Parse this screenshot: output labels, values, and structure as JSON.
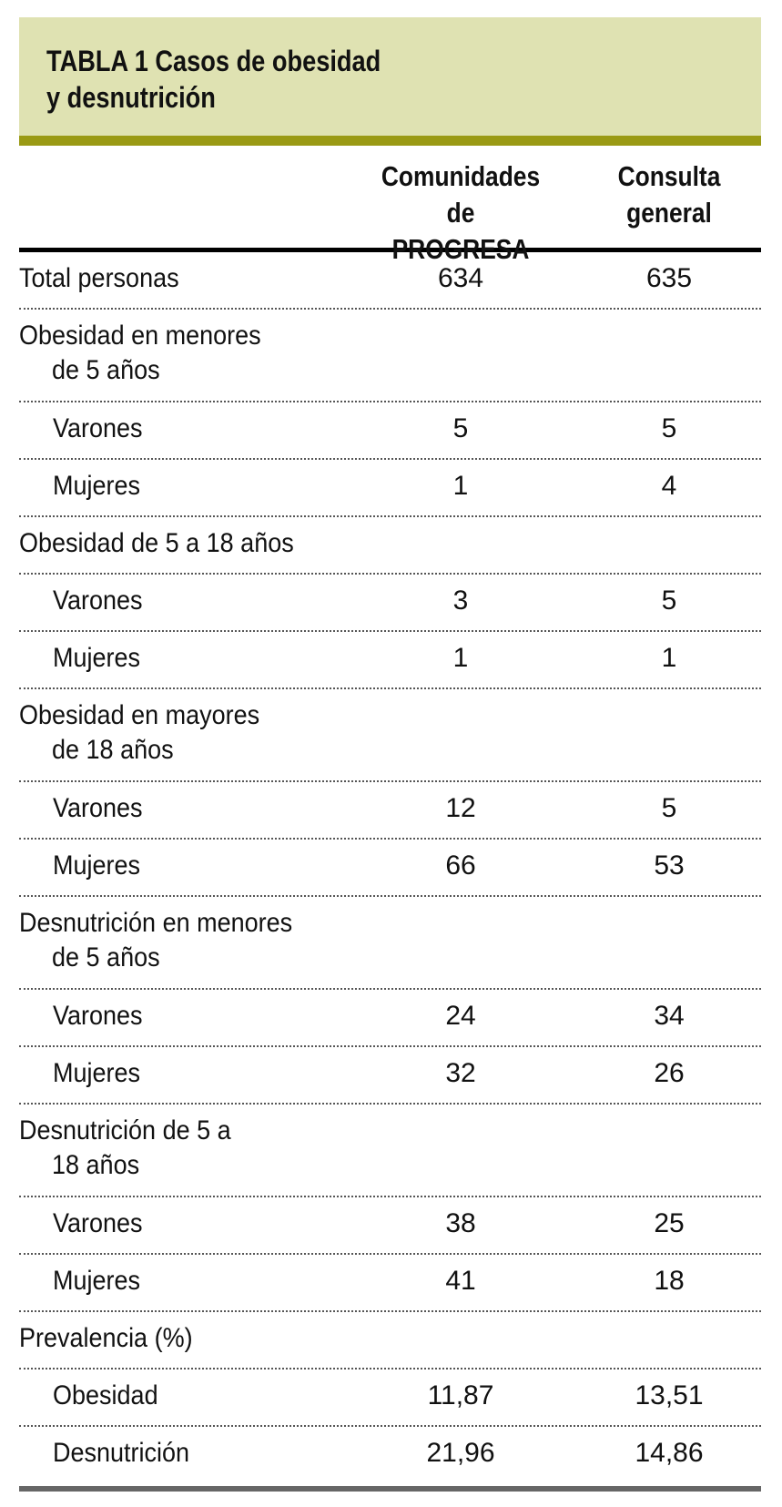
{
  "header": {
    "title_lines": [
      "TABLA 1 Casos de obesidad",
      "y desnutrición"
    ]
  },
  "table": {
    "columns": [
      [
        "Comunidades",
        "de PROGRESA"
      ],
      [
        "Consulta",
        "general"
      ]
    ],
    "sections": [
      {
        "label_lines": [
          "Total personas"
        ],
        "values": [
          634,
          635
        ],
        "rows": []
      },
      {
        "label_lines": [
          "Obesidad en menores",
          "de 5 años"
        ],
        "rows": [
          {
            "label": "Varones",
            "values": [
              5,
              5
            ]
          },
          {
            "label": "Mujeres",
            "values": [
              1,
              4
            ]
          }
        ]
      },
      {
        "label_lines": [
          "Obesidad de 5 a 18 años"
        ],
        "rows": [
          {
            "label": "Varones",
            "values": [
              3,
              5
            ]
          },
          {
            "label": "Mujeres",
            "values": [
              1,
              1
            ]
          }
        ]
      },
      {
        "label_lines": [
          "Obesidad en mayores",
          "de 18 años"
        ],
        "rows": [
          {
            "label": "Varones",
            "values": [
              12,
              5
            ]
          },
          {
            "label": "Mujeres",
            "values": [
              66,
              53
            ]
          }
        ]
      },
      {
        "label_lines": [
          "Desnutrición en menores",
          "de 5 años"
        ],
        "rows": [
          {
            "label": "Varones",
            "values": [
              24,
              34
            ]
          },
          {
            "label": "Mujeres",
            "values": [
              32,
              26
            ]
          }
        ]
      },
      {
        "label_lines": [
          "Desnutrición de 5 a",
          "18 años"
        ],
        "rows": [
          {
            "label": "Varones",
            "values": [
              38,
              25
            ]
          },
          {
            "label": "Mujeres",
            "values": [
              41,
              18
            ]
          }
        ]
      },
      {
        "label_lines": [
          "Prevalencia (%)"
        ],
        "rows": [
          {
            "label": "Obesidad",
            "values": [
              "11,87",
              "13,51"
            ]
          },
          {
            "label": "Desnutrición",
            "values": [
              "21,96",
              "14,86"
            ]
          }
        ]
      }
    ]
  }
}
